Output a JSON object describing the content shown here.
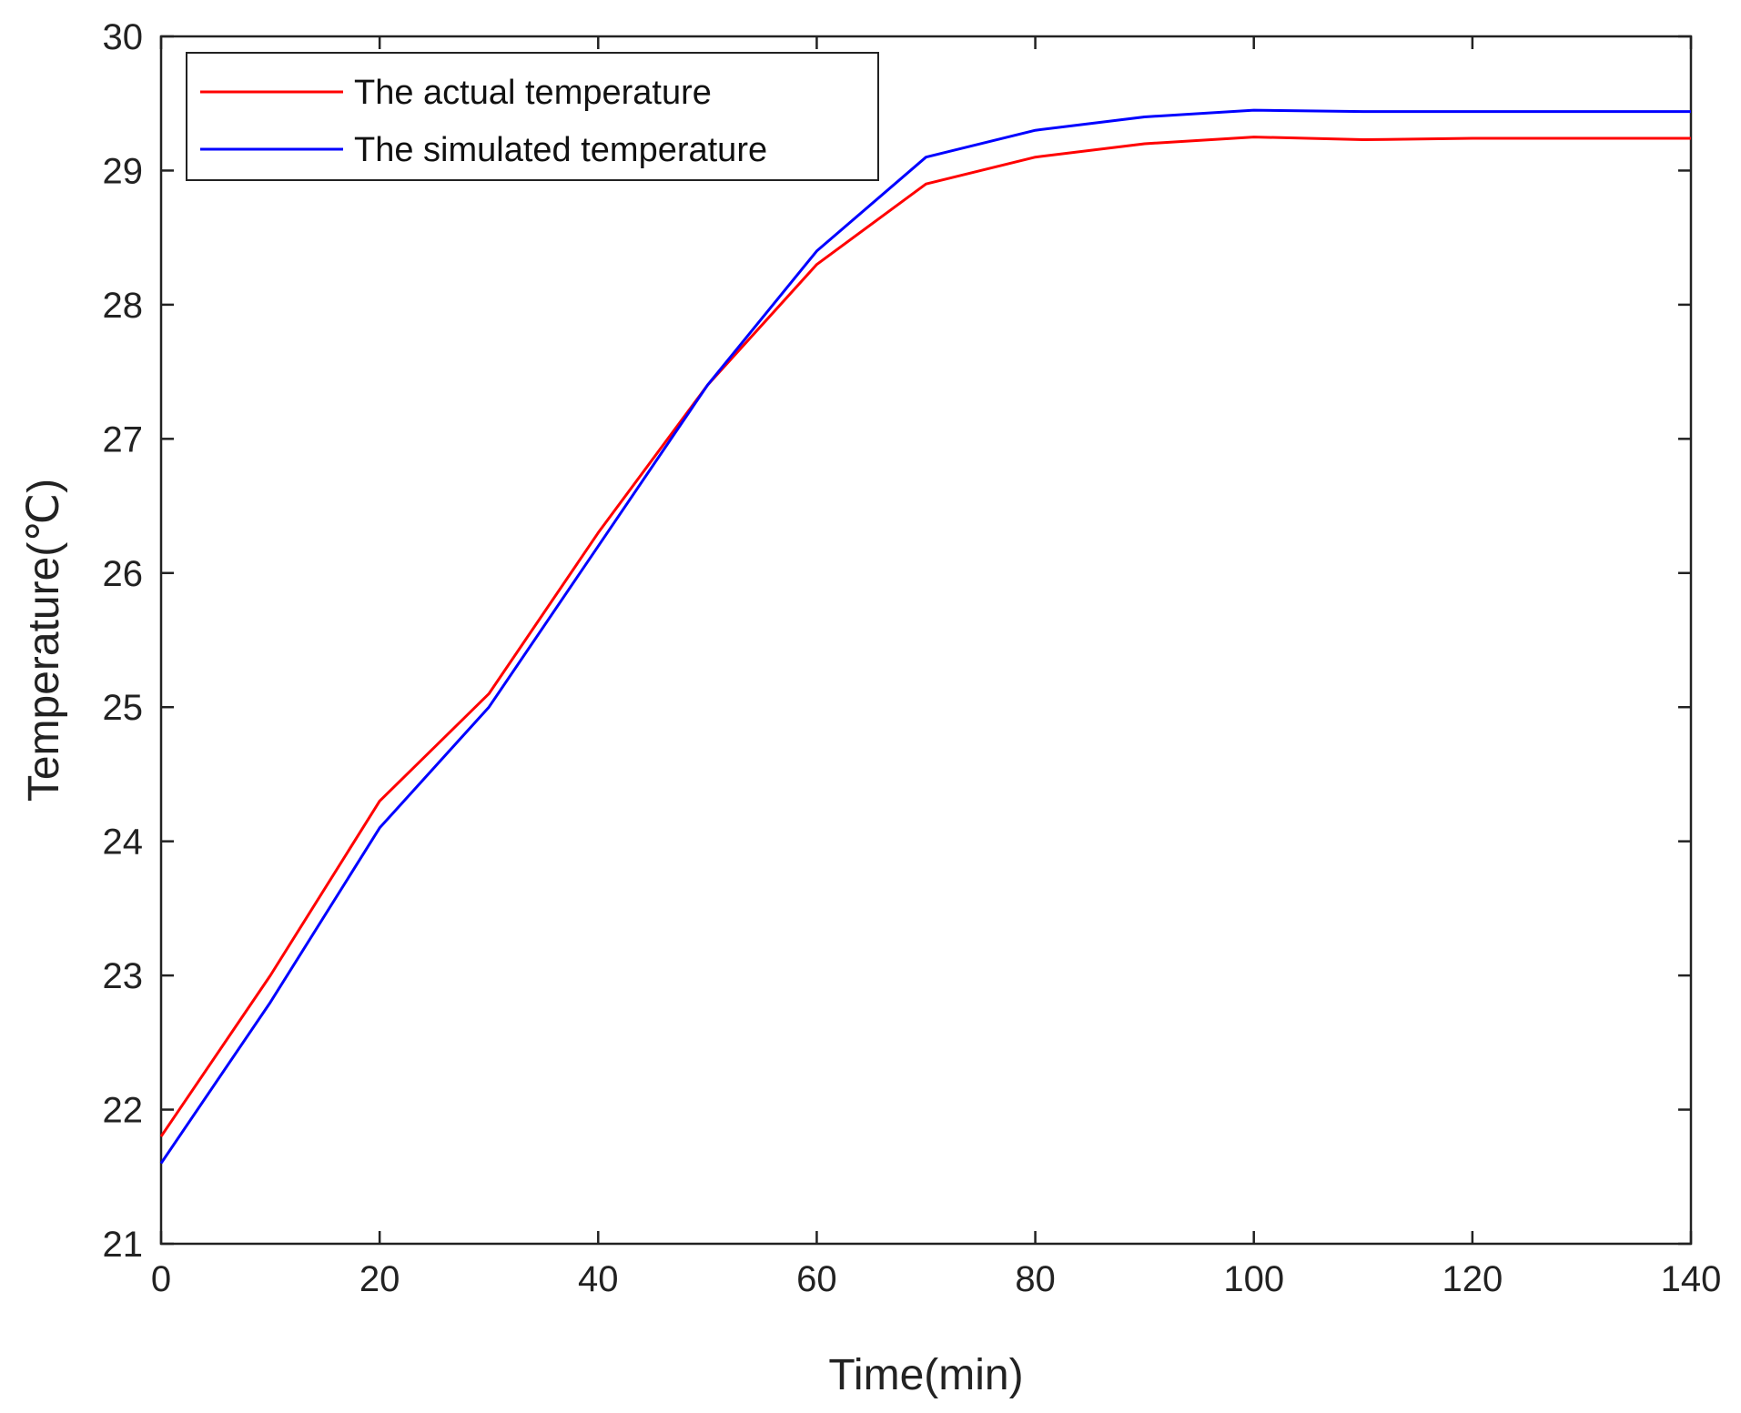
{
  "chart_data": {
    "type": "line",
    "title": "",
    "xlabel": "Time(min)",
    "ylabel": "Temperature(℃)",
    "xlim": [
      0,
      140
    ],
    "ylim": [
      21,
      30
    ],
    "xticks": [
      0,
      20,
      40,
      60,
      80,
      100,
      120,
      140
    ],
    "yticks": [
      21,
      22,
      23,
      24,
      25,
      26,
      27,
      28,
      29,
      30
    ],
    "grid": false,
    "legend_position": "top-left",
    "x": [
      0,
      10,
      20,
      30,
      40,
      50,
      60,
      70,
      80,
      90,
      100,
      110,
      120,
      130,
      140
    ],
    "series": [
      {
        "name": "The actual temperature",
        "color": "#ff0000",
        "values": [
          21.8,
          23.0,
          24.3,
          25.1,
          26.3,
          27.4,
          28.3,
          28.9,
          29.1,
          29.2,
          29.25,
          29.23,
          29.24,
          29.24,
          29.24
        ]
      },
      {
        "name": "The simulated temperature",
        "color": "#0000ff",
        "values": [
          21.6,
          22.8,
          24.1,
          25.0,
          26.2,
          27.4,
          28.4,
          29.1,
          29.3,
          29.4,
          29.45,
          29.44,
          29.44,
          29.44,
          29.44
        ]
      }
    ]
  }
}
